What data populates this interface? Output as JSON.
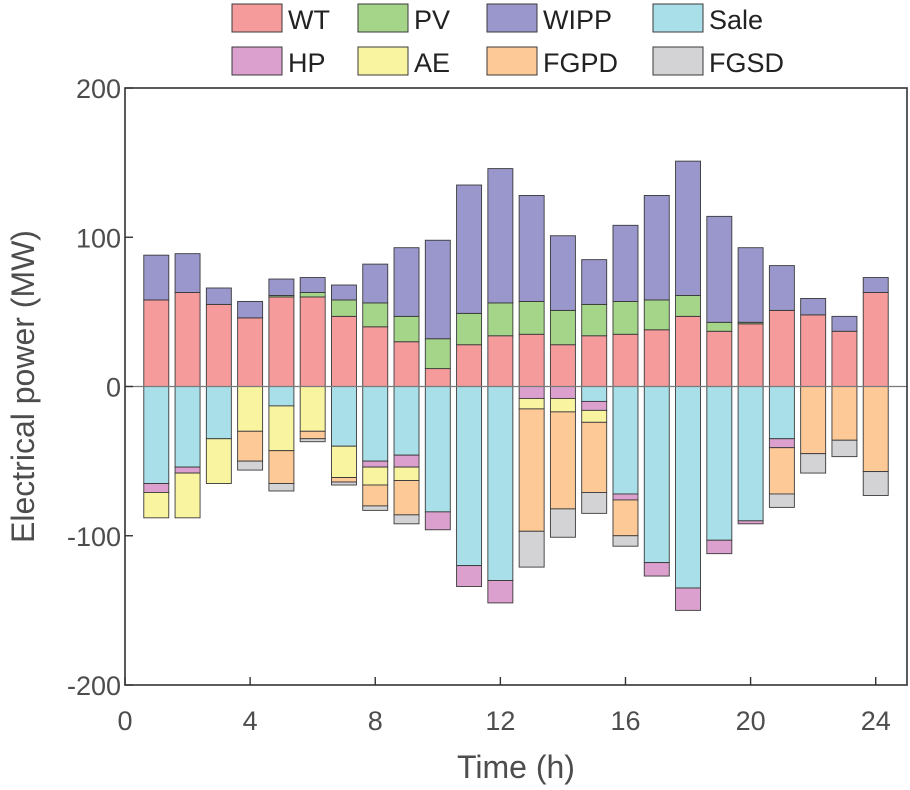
{
  "chart_data": {
    "type": "bar",
    "stacked": true,
    "xlabel": "Time (h)",
    "ylabel": "Electrical power (MW)",
    "xlim": [
      0,
      25
    ],
    "ylim": [
      -200,
      200
    ],
    "xticks": [
      0,
      4,
      8,
      12,
      16,
      20,
      24
    ],
    "yticks": [
      -200,
      -100,
      0,
      100,
      200
    ],
    "grid": false,
    "legend_position": "top",
    "categories": [
      1,
      2,
      3,
      4,
      5,
      6,
      7,
      8,
      9,
      10,
      11,
      12,
      13,
      14,
      15,
      16,
      17,
      18,
      19,
      20,
      21,
      22,
      23,
      24
    ],
    "series": [
      {
        "name": "WT",
        "color": "#f59b9b",
        "values": [
          58,
          63,
          55,
          46,
          60,
          60,
          47,
          40,
          30,
          12,
          28,
          34,
          35,
          28,
          34,
          35,
          38,
          47,
          37,
          42,
          51,
          48,
          37,
          63
        ]
      },
      {
        "name": "PV",
        "color": "#a5d588",
        "values": [
          0,
          0,
          0,
          0,
          1,
          3,
          11,
          16,
          17,
          20,
          21,
          22,
          22,
          23,
          21,
          22,
          20,
          14,
          6,
          1,
          0,
          0,
          0,
          0
        ]
      },
      {
        "name": "WIPP",
        "color": "#9a97cc",
        "values": [
          30,
          26,
          11,
          11,
          11,
          10,
          10,
          26,
          46,
          66,
          86,
          90,
          71,
          50,
          30,
          51,
          70,
          90,
          71,
          50,
          30,
          11,
          10,
          10
        ]
      },
      {
        "name": "Sale",
        "color": "#a9dfe9",
        "values": [
          -65,
          -54,
          -35,
          0,
          -13,
          0,
          -40,
          -50,
          -46,
          -84,
          -120,
          -130,
          0,
          0,
          -10,
          -72,
          -118,
          -135,
          -103,
          -90,
          -35,
          0,
          0,
          0
        ]
      },
      {
        "name": "HP",
        "color": "#dba0ce",
        "values": [
          -6,
          -4,
          0,
          0,
          0,
          0,
          0,
          -4,
          -8,
          -12,
          -14,
          -15,
          -8,
          -8,
          -6,
          -4,
          -9,
          -15,
          -9,
          -2,
          -6,
          0,
          0,
          0
        ]
      },
      {
        "name": "AE",
        "color": "#f8f4a0",
        "values": [
          -17,
          -30,
          -30,
          -30,
          -30,
          -30,
          -21,
          -12,
          -9,
          0,
          0,
          0,
          -7,
          -9,
          -8,
          0,
          0,
          0,
          0,
          0,
          0,
          0,
          0,
          0
        ]
      },
      {
        "name": "FGPD",
        "color": "#fdc997",
        "values": [
          0,
          0,
          0,
          -20,
          -22,
          -5,
          -3,
          -14,
          -23,
          0,
          0,
          0,
          -82,
          -65,
          -47,
          -24,
          0,
          0,
          0,
          0,
          -31,
          -45,
          -36,
          -57
        ]
      },
      {
        "name": "FGSD",
        "color": "#d3d3d5",
        "values": [
          0,
          0,
          0,
          -6,
          -5,
          -2,
          -2,
          -3,
          -6,
          0,
          0,
          0,
          -24,
          -19,
          -14,
          -7,
          0,
          0,
          0,
          0,
          -9,
          -13,
          -11,
          -16
        ]
      }
    ]
  }
}
